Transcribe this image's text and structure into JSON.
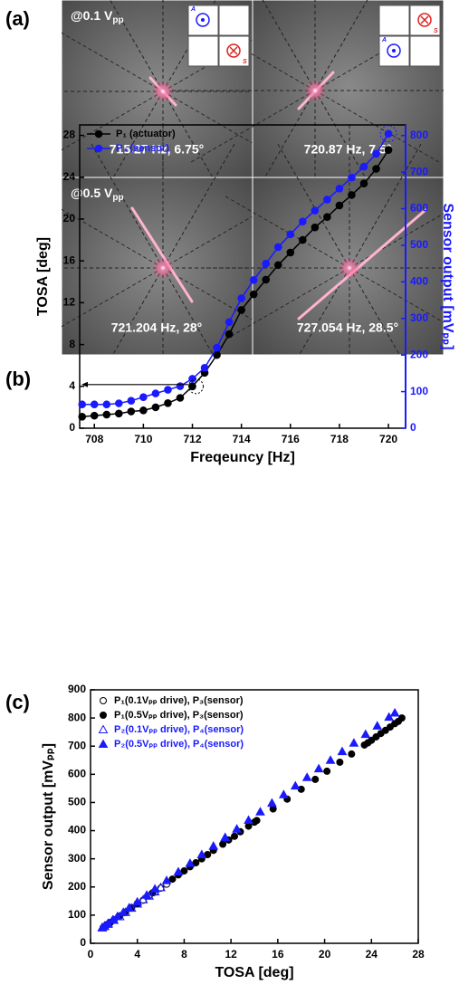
{
  "figure": {
    "panel_labels": [
      "(a)",
      "(b)",
      "(c)"
    ],
    "voltage_labels": [
      {
        "text": "@0.1 V",
        "sub": "pp"
      },
      {
        "text": "@0.5 V",
        "sub": "pp"
      }
    ],
    "captions": [
      "715.27 Hz, 6.75°",
      "720.87 Hz, 7.5°",
      "721.204 Hz, 28°",
      "727.054 Hz, 28.5°"
    ],
    "insets": [
      {
        "a": "A",
        "s": "S"
      },
      {
        "a": "A",
        "s": "S"
      }
    ]
  },
  "chart_data": [
    {
      "type": "line",
      "x_label": "Freqeuncy [Hz]",
      "y_label": "TOSA [deg]",
      "y2_label": "Sensor output [mVₚₚ]",
      "x": [
        707.5,
        708,
        708.5,
        709,
        709.5,
        710,
        710.5,
        711,
        711.5,
        712,
        712.5,
        713,
        713.5,
        714,
        714.5,
        715,
        715.5,
        716,
        716.5,
        717,
        717.5,
        718,
        718.5,
        719,
        719.5,
        720
      ],
      "series": [
        {
          "name": "P₁ (actuator)",
          "color": "#000000",
          "axis": "y",
          "values": [
            1.1,
            1.2,
            1.3,
            1.4,
            1.6,
            1.7,
            2.0,
            2.4,
            2.9,
            4.0,
            5.3,
            7.0,
            9.0,
            11.3,
            12.8,
            14.2,
            15.6,
            16.8,
            18.0,
            19.2,
            20.2,
            21.3,
            22.3,
            23.4,
            24.8,
            26.6
          ]
        },
        {
          "name": "P₃ (sensor)",
          "color": "#1a1aff",
          "axis": "y2",
          "values": [
            65,
            65,
            65,
            68,
            75,
            85,
            95,
            105,
            115,
            135,
            165,
            220,
            290,
            355,
            405,
            450,
            495,
            530,
            565,
            595,
            625,
            655,
            685,
            715,
            750,
            805
          ]
        }
      ],
      "xlim": [
        707.4,
        720.7
      ],
      "xticks": [
        708,
        710,
        712,
        714,
        716,
        718,
        720
      ],
      "ylim": [
        0,
        29
      ],
      "yticks": [
        0,
        4,
        8,
        12,
        16,
        20,
        24,
        28
      ],
      "y2lim": [
        0,
        829
      ],
      "y2ticks": [
        0,
        100,
        200,
        300,
        400,
        500,
        600,
        700,
        800
      ],
      "legend": "upper left",
      "grid": false
    },
    {
      "type": "scatter",
      "x_label": "TOSA [deg]",
      "y_label": "Sensor output [mVₚₚ]",
      "series": [
        {
          "name": "P₁(0.1Vₚₚ drive), P₃(sensor)",
          "color": "#000000",
          "marker": "circle",
          "filled": false,
          "x": [
            1.1,
            1.3,
            1.6,
            2,
            2.5,
            3,
            3.5,
            4,
            4.5,
            5,
            5.5,
            6,
            6.5
          ],
          "values": [
            57,
            62,
            72,
            83,
            97,
            111,
            125,
            140,
            153,
            168,
            182,
            196,
            210
          ]
        },
        {
          "name": "P₁(0.5Vₚₚ drive), P₃(sensor)",
          "color": "#000000",
          "marker": "circle",
          "filled": true,
          "x": [
            1.1,
            1.2,
            1.4,
            1.7,
            2.0,
            2.4,
            2.9,
            3.5,
            4.0,
            5.3,
            7.0,
            7.5,
            8.0,
            8.5,
            9.0,
            9.5,
            10,
            10.5,
            11.3,
            11.8,
            12.3,
            12.8,
            13.5,
            14,
            14.2,
            15.6,
            16.8,
            18,
            19.2,
            20.2,
            21.3,
            22.3,
            23.4,
            23.7,
            24,
            24.4,
            24.8,
            25.2,
            25.6,
            26,
            26.3,
            26.6
          ],
          "values": [
            57,
            60,
            66,
            74,
            83,
            95,
            109,
            127,
            141,
            179,
            228,
            243,
            257,
            272,
            286,
            300,
            315,
            330,
            352,
            367,
            380,
            396,
            416,
            430,
            436,
            477,
            512,
            547,
            582,
            611,
            643,
            672,
            704,
            712,
            721,
            733,
            745,
            756,
            768,
            780,
            788,
            800
          ]
        },
        {
          "name": "P₂(0.1Vₚₚ drive), P₄(sensor)",
          "color": "#1a1aff",
          "marker": "triangle",
          "filled": false,
          "x": [
            1,
            1.2,
            1.5,
            2,
            2.5,
            3,
            3.5,
            4,
            4.5,
            5,
            5.5,
            6
          ],
          "values": [
            55,
            60,
            68,
            82,
            95,
            110,
            125,
            140,
            155,
            168,
            183,
            198
          ]
        },
        {
          "name": "P₂(0.5Vₚₚ drive), P₄(sensor)",
          "color": "#1a1aff",
          "marker": "triangle",
          "filled": true,
          "x": [
            1.0,
            1.2,
            1.5,
            1.9,
            2.3,
            2.8,
            3.3,
            4.0,
            4.8,
            5.5,
            6.5,
            7.5,
            8.5,
            9.5,
            10.5,
            11.5,
            12.5,
            13.5,
            14.5,
            15.5,
            16.5,
            17.5,
            18.5,
            19.5,
            20.5,
            21.5,
            22.5,
            23.5,
            24.5,
            25.5,
            26.0
          ],
          "values": [
            56,
            62,
            71,
            83,
            95,
            110,
            126,
            147,
            171,
            193,
            223,
            254,
            284,
            315,
            345,
            376,
            406,
            437,
            467,
            498,
            528,
            559,
            589,
            620,
            650,
            681,
            711,
            742,
            772,
            803,
            818
          ]
        }
      ],
      "xlim": [
        0,
        28
      ],
      "xticks": [
        0,
        4,
        8,
        12,
        16,
        20,
        24,
        28
      ],
      "ylim": [
        0,
        900
      ],
      "yticks": [
        0,
        100,
        200,
        300,
        400,
        500,
        600,
        700,
        800,
        900
      ],
      "legend": "upper left",
      "grid": false
    }
  ]
}
